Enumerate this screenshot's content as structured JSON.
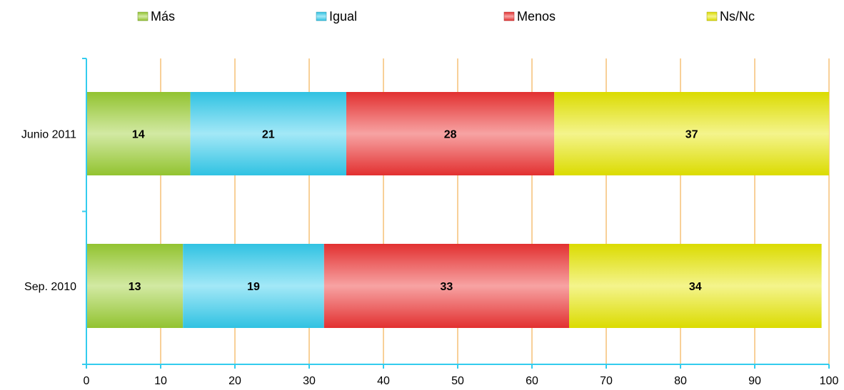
{
  "chart_data": {
    "type": "bar",
    "orientation": "horizontal",
    "stacked": true,
    "categories": [
      "Junio 2011",
      "Sep. 2010"
    ],
    "series": [
      {
        "name": "Más",
        "values": [
          14,
          13
        ],
        "color": "#9acd32"
      },
      {
        "name": "Igual",
        "values": [
          21,
          19
        ],
        "color": "#33ccee"
      },
      {
        "name": "Menos",
        "values": [
          28,
          33
        ],
        "color": "#ee3333"
      },
      {
        "name": "Ns/Nc",
        "values": [
          37,
          34
        ],
        "color": "#e6e600"
      }
    ],
    "xlim": [
      0,
      100
    ],
    "xticks": [
      0,
      10,
      20,
      30,
      40,
      50,
      60,
      70,
      80,
      90,
      100
    ],
    "grid": true,
    "legend_position": "top",
    "axis_color": "#33ccee",
    "grid_color": "#f0a030"
  }
}
